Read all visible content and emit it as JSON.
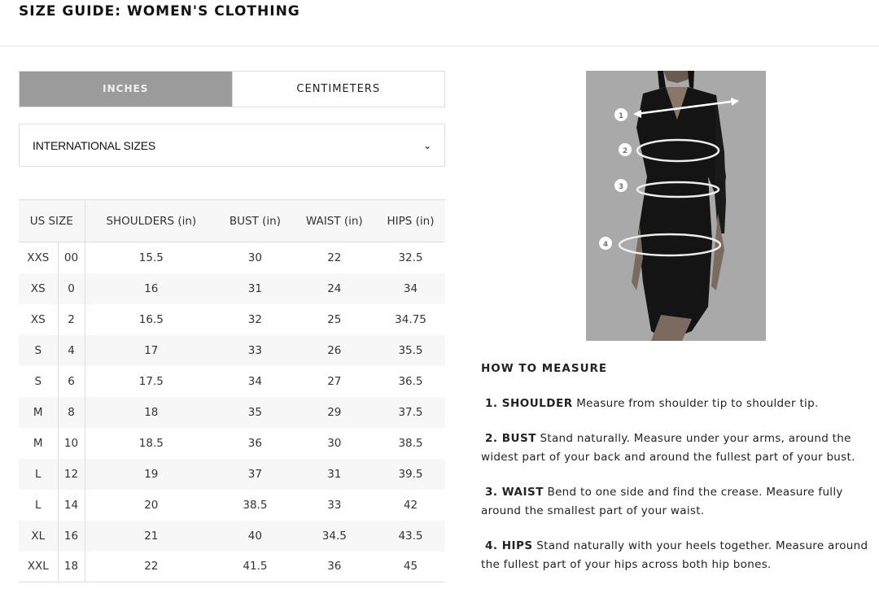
{
  "header": {
    "title": "SIZE GUIDE: WOMEN'S CLOTHING"
  },
  "units": {
    "inches": "INCHES",
    "centimeters": "CENTIMETERS",
    "selected": "INCHES"
  },
  "size_select": {
    "value": "INTERNATIONAL SIZES",
    "icon": "chevron-down-icon"
  },
  "table": {
    "headers": [
      "US SIZE",
      "SHOULDERS (in)",
      "BUST (in)",
      "WAIST (in)",
      "HIPS (in)"
    ],
    "rows": [
      [
        "XXS",
        "00",
        "15.5",
        "30",
        "22",
        "32.5"
      ],
      [
        "XS",
        "0",
        "16",
        "31",
        "24",
        "34"
      ],
      [
        "XS",
        "2",
        "16.5",
        "32",
        "25",
        "34.75"
      ],
      [
        "S",
        "4",
        "17",
        "33",
        "26",
        "35.5"
      ],
      [
        "S",
        "6",
        "17.5",
        "34",
        "27",
        "36.5"
      ],
      [
        "M",
        "8",
        "18",
        "35",
        "29",
        "37.5"
      ],
      [
        "M",
        "10",
        "18.5",
        "36",
        "30",
        "38.5"
      ],
      [
        "L",
        "12",
        "19",
        "37",
        "31",
        "39.5"
      ],
      [
        "L",
        "14",
        "20",
        "38.5",
        "33",
        "42"
      ],
      [
        "XL",
        "16",
        "21",
        "40",
        "34.5",
        "43.5"
      ],
      [
        "XXL",
        "18",
        "22",
        "41.5",
        "36",
        "45"
      ]
    ]
  },
  "image": {
    "markers": [
      "1",
      "2",
      "3",
      "4"
    ]
  },
  "how_to": {
    "title": "HOW TO MEASURE",
    "steps": [
      {
        "label": "1. SHOULDER",
        "text": " Measure from shoulder tip to shoulder tip."
      },
      {
        "label": "2. BUST",
        "text": "  Stand naturally. Measure under your arms, around the widest part of your back and around the fullest part of your bust."
      },
      {
        "label": "3. WAIST",
        "text": " Bend to one side and find the crease. Measure fully around the smallest part of your waist."
      },
      {
        "label": "4. HIPS",
        "text": " Stand naturally with your heels together. Measure around the fullest part of your hips across both hip bones."
      }
    ]
  }
}
